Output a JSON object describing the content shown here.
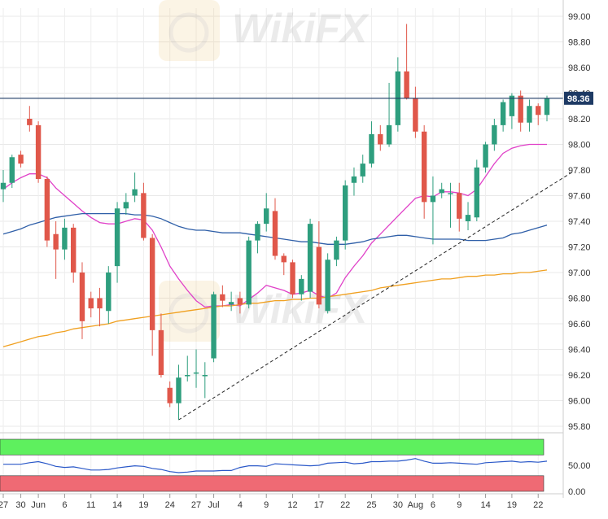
{
  "chart_data": {
    "type": "candlestick",
    "title": "",
    "xlabel": "",
    "ylabel": "",
    "ylim": [
      95.8,
      99.0
    ],
    "y_ticks": [
      "99.00",
      "98.80",
      "98.60",
      "98.40",
      "98.20",
      "98.00",
      "97.80",
      "97.60",
      "97.40",
      "97.20",
      "97.00",
      "96.80",
      "96.60",
      "96.40",
      "96.20",
      "96.00",
      "95.80"
    ],
    "x_ticks": [
      "27",
      "30",
      "Jun",
      "6",
      "11",
      "14",
      "19",
      "24",
      "27",
      "Jul",
      "4",
      "9",
      "12",
      "17",
      "22",
      "25",
      "30",
      "Aug",
      "6",
      "9",
      "14",
      "19",
      "22"
    ],
    "price_label": "98.36",
    "grid": true,
    "ohlc": [
      [
        97.65,
        97.8,
        97.55,
        97.7
      ],
      [
        97.7,
        97.92,
        97.66,
        97.9
      ],
      [
        97.92,
        97.95,
        97.82,
        97.85
      ],
      [
        98.2,
        98.3,
        98.1,
        98.15
      ],
      [
        98.15,
        98.18,
        97.7,
        97.73
      ],
      [
        97.73,
        97.75,
        97.2,
        97.25
      ],
      [
        97.3,
        97.4,
        96.95,
        97.18
      ],
      [
        97.18,
        97.42,
        97.1,
        97.35
      ],
      [
        97.35,
        97.38,
        96.92,
        97.0
      ],
      [
        97.0,
        97.08,
        96.48,
        96.62
      ],
      [
        96.8,
        96.85,
        96.65,
        96.72
      ],
      [
        96.8,
        96.88,
        96.58,
        96.72
      ],
      [
        96.7,
        97.05,
        96.6,
        97.0
      ],
      [
        97.05,
        97.55,
        96.92,
        97.5
      ],
      [
        97.5,
        97.62,
        97.45,
        97.55
      ],
      [
        97.6,
        97.78,
        97.55,
        97.65
      ],
      [
        97.62,
        97.7,
        97.25,
        97.27
      ],
      [
        97.27,
        97.3,
        96.35,
        96.55
      ],
      [
        96.55,
        96.68,
        96.18,
        96.2
      ],
      [
        96.1,
        96.15,
        95.95,
        95.98
      ],
      [
        95.98,
        96.28,
        95.85,
        96.18
      ],
      [
        96.2,
        96.35,
        96.15,
        96.2
      ],
      [
        96.22,
        96.4,
        96.1,
        96.22
      ],
      [
        96.2,
        96.3,
        96.02,
        96.2
      ],
      [
        96.33,
        96.85,
        96.3,
        96.83
      ],
      [
        96.83,
        96.9,
        96.73,
        96.78
      ],
      [
        96.75,
        96.85,
        96.7,
        96.77
      ],
      [
        96.8,
        96.85,
        96.68,
        96.75
      ],
      [
        96.75,
        97.28,
        96.72,
        97.25
      ],
      [
        97.25,
        97.4,
        97.15,
        97.38
      ],
      [
        97.38,
        97.62,
        97.32,
        97.5
      ],
      [
        97.48,
        97.58,
        97.1,
        97.13
      ],
      [
        97.13,
        97.15,
        96.98,
        97.08
      ],
      [
        97.08,
        97.1,
        96.8,
        96.83
      ],
      [
        96.83,
        96.98,
        96.78,
        96.95
      ],
      [
        96.85,
        97.42,
        96.8,
        97.38
      ],
      [
        97.2,
        97.4,
        96.72,
        96.75
      ],
      [
        96.7,
        97.15,
        96.68,
        97.1
      ],
      [
        97.1,
        97.28,
        97.05,
        97.25
      ],
      [
        97.25,
        97.72,
        97.18,
        97.68
      ],
      [
        97.7,
        97.82,
        97.6,
        97.75
      ],
      [
        97.75,
        97.92,
        97.7,
        97.85
      ],
      [
        97.85,
        98.18,
        97.82,
        98.08
      ],
      [
        98.08,
        98.15,
        97.95,
        98.0
      ],
      [
        98.0,
        98.48,
        97.98,
        98.15
      ],
      [
        98.15,
        98.68,
        98.1,
        98.57
      ],
      [
        98.57,
        98.94,
        98.35,
        98.36
      ],
      [
        98.36,
        98.45,
        98.05,
        98.1
      ],
      [
        98.1,
        98.15,
        97.42,
        97.55
      ],
      [
        97.55,
        97.75,
        97.22,
        97.6
      ],
      [
        97.62,
        97.7,
        97.58,
        97.65
      ],
      [
        97.62,
        97.7,
        97.35,
        97.62
      ],
      [
        97.62,
        97.7,
        97.32,
        97.42
      ],
      [
        97.4,
        97.55,
        97.33,
        97.45
      ],
      [
        97.43,
        97.88,
        97.4,
        97.82
      ],
      [
        97.82,
        98.02,
        97.78,
        98.0
      ],
      [
        98.0,
        98.2,
        97.95,
        98.15
      ],
      [
        98.15,
        98.35,
        98.1,
        98.33
      ],
      [
        98.22,
        98.4,
        98.12,
        98.38
      ],
      [
        98.38,
        98.42,
        98.1,
        98.17
      ],
      [
        98.17,
        98.35,
        98.1,
        98.3
      ],
      [
        98.3,
        98.32,
        98.15,
        98.23
      ],
      [
        98.23,
        98.38,
        98.18,
        98.36
      ]
    ],
    "series": [
      {
        "values": [
          97.65,
          97.7,
          97.74,
          97.77,
          97.77,
          97.74,
          97.66,
          97.6,
          97.54,
          97.48,
          97.43,
          97.39,
          97.38,
          97.38,
          97.4,
          97.42,
          97.41,
          97.33,
          97.2,
          97.05,
          96.95,
          96.86,
          96.78,
          96.73,
          96.74,
          96.74,
          96.75,
          96.74,
          96.79,
          96.84,
          96.9,
          96.88,
          96.86,
          96.83,
          96.84,
          96.86,
          96.82,
          96.8,
          96.84,
          96.96,
          97.05,
          97.13,
          97.23,
          97.3,
          97.37,
          97.44,
          97.51,
          97.58,
          97.6,
          97.59,
          97.63,
          97.63,
          97.62,
          97.6,
          97.65,
          97.75,
          97.85,
          97.93,
          97.97,
          97.99,
          98.0,
          98.0,
          98.0
        ],
        "color": "#e040c8"
      },
      {
        "values": [
          97.3,
          97.32,
          97.34,
          97.37,
          97.39,
          97.41,
          97.43,
          97.44,
          97.45,
          97.46,
          97.46,
          97.46,
          97.46,
          97.46,
          97.46,
          97.45,
          97.45,
          97.44,
          97.42,
          97.39,
          97.36,
          97.34,
          97.33,
          97.33,
          97.32,
          97.31,
          97.31,
          97.31,
          97.3,
          97.29,
          97.28,
          97.27,
          97.26,
          97.25,
          97.24,
          97.24,
          97.23,
          97.22,
          97.22,
          97.22,
          97.23,
          97.24,
          97.26,
          97.27,
          97.28,
          97.29,
          97.29,
          97.28,
          97.27,
          97.26,
          97.26,
          97.26,
          97.26,
          97.25,
          97.25,
          97.25,
          97.26,
          97.27,
          97.3,
          97.31,
          97.33,
          97.35,
          97.37
        ],
        "color": "#2f5fa8"
      },
      {
        "values": [
          96.42,
          96.44,
          96.46,
          96.48,
          96.5,
          96.51,
          96.53,
          96.54,
          96.56,
          96.57,
          96.58,
          96.59,
          96.6,
          96.62,
          96.63,
          96.64,
          96.65,
          96.66,
          96.67,
          96.68,
          96.69,
          96.7,
          96.71,
          96.72,
          96.73,
          96.74,
          96.74,
          96.75,
          96.76,
          96.76,
          96.77,
          96.78,
          96.78,
          96.79,
          96.79,
          96.8,
          96.8,
          96.81,
          96.82,
          96.83,
          96.84,
          96.85,
          96.86,
          96.88,
          96.89,
          96.9,
          96.91,
          96.92,
          96.93,
          96.94,
          96.95,
          96.95,
          96.96,
          96.97,
          96.97,
          96.98,
          96.98,
          96.99,
          96.99,
          97.0,
          97.0,
          97.01,
          97.02
        ],
        "color": "#f0a020"
      }
    ],
    "trendline": {
      "from": [
        20,
        95.85
      ],
      "to": [
        63,
        97.74
      ]
    },
    "rsi": {
      "ylim": [
        0,
        100
      ],
      "y_ticks": [
        "50.00",
        "0.00"
      ],
      "overbought": 70,
      "oversold": 30,
      "values": [
        52,
        52,
        52,
        55,
        57,
        53,
        48,
        46,
        47,
        44,
        41,
        41,
        42,
        45,
        47,
        49,
        48,
        44,
        42,
        38,
        36,
        37,
        39,
        39,
        39,
        40,
        40,
        46,
        49,
        49,
        48,
        53,
        52,
        51,
        50,
        49,
        50,
        54,
        55,
        56,
        53,
        54,
        57,
        57,
        58,
        58,
        60,
        63,
        58,
        54,
        54,
        55,
        54,
        53,
        52,
        55,
        56,
        57,
        58,
        56,
        57,
        56,
        58
      ]
    },
    "colors": {
      "bull": "#2e9e7e",
      "bear": "#e0574a",
      "price_line": "#1e3a64",
      "rsi_line": "#2a58c8",
      "rsi_overbought": "#5ef05e",
      "rsi_oversold": "#ef6a74"
    }
  },
  "watermark": {
    "text": "WikiFX"
  }
}
